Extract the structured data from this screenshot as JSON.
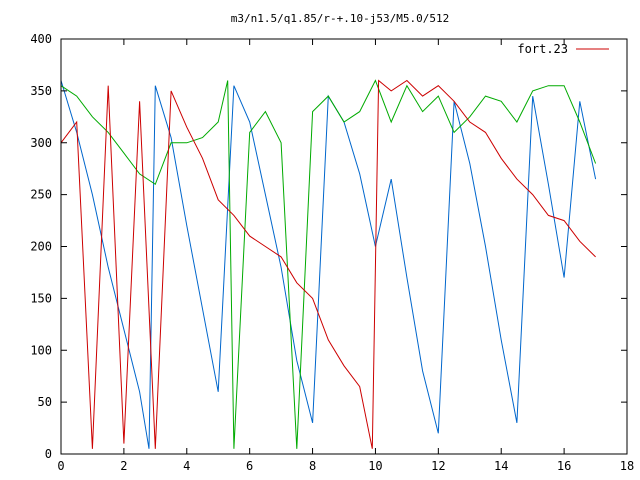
{
  "chart_data": {
    "type": "line",
    "title": "m3/n1.5/q1.85/r-+.10-j53/M5.0/512",
    "xlabel": "",
    "ylabel": "",
    "xlim": [
      0,
      18
    ],
    "ylim": [
      0,
      400
    ],
    "x_ticks": [
      0,
      2,
      4,
      6,
      8,
      10,
      12,
      14,
      16,
      18
    ],
    "y_ticks": [
      0,
      50,
      100,
      150,
      200,
      250,
      300,
      350,
      400
    ],
    "grid": false,
    "legend_position": "top-right",
    "legend": [
      {
        "label": "fort.23",
        "color": "#cc0000"
      }
    ],
    "series": [
      {
        "name": "fort.23",
        "color": "#cc0000",
        "x": [
          0.0,
          0.5,
          1.0,
          1.5,
          2.0,
          2.5,
          3.0,
          3.5,
          4.0,
          4.5,
          5.0,
          5.5,
          6.0,
          6.5,
          7.0,
          7.5,
          8.0,
          8.5,
          9.0,
          9.5,
          9.9,
          10.1,
          10.5,
          11.0,
          11.5,
          12.0,
          12.5,
          13.0,
          13.5,
          14.0,
          14.5,
          15.0,
          15.5,
          16.0,
          16.5,
          17.0
        ],
        "y": [
          300,
          320,
          5,
          355,
          10,
          340,
          5,
          350,
          315,
          285,
          245,
          230,
          210,
          200,
          190,
          165,
          150,
          110,
          85,
          65,
          5,
          360,
          350,
          360,
          345,
          355,
          340,
          320,
          310,
          285,
          265,
          250,
          230,
          225,
          205,
          190
        ]
      },
      {
        "color": "#00aa00",
        "x": [
          0.0,
          0.5,
          1.0,
          1.5,
          2.0,
          2.5,
          3.0,
          3.5,
          4.0,
          4.5,
          5.0,
          5.3,
          5.5,
          6.0,
          6.5,
          7.0,
          7.5,
          8.0,
          8.5,
          9.0,
          9.5,
          10.0,
          10.5,
          11.0,
          11.5,
          12.0,
          12.5,
          13.0,
          13.5,
          14.0,
          14.5,
          15.0,
          15.5,
          16.0,
          16.5,
          17.0
        ],
        "y": [
          355,
          345,
          325,
          310,
          290,
          270,
          260,
          300,
          300,
          305,
          320,
          360,
          5,
          310,
          330,
          300,
          5,
          330,
          345,
          320,
          330,
          360,
          320,
          355,
          330,
          345,
          310,
          325,
          345,
          340,
          320,
          350,
          355,
          355,
          320,
          280
        ]
      },
      {
        "color": "#0066cc",
        "x": [
          0.0,
          0.5,
          1.0,
          1.5,
          2.0,
          2.5,
          2.8,
          3.0,
          3.5,
          4.0,
          4.5,
          5.0,
          5.5,
          6.0,
          6.5,
          7.0,
          7.5,
          8.0,
          8.5,
          9.0,
          9.5,
          10.0,
          10.5,
          11.0,
          11.5,
          12.0,
          12.5,
          13.0,
          13.5,
          14.0,
          14.5,
          15.0,
          15.5,
          16.0,
          16.5,
          17.0
        ],
        "y": [
          360,
          310,
          250,
          180,
          120,
          60,
          5,
          355,
          305,
          220,
          140,
          60,
          355,
          320,
          250,
          180,
          90,
          30,
          345,
          320,
          270,
          200,
          265,
          170,
          80,
          20,
          340,
          280,
          200,
          110,
          30,
          345,
          260,
          170,
          340,
          265
        ]
      }
    ]
  }
}
